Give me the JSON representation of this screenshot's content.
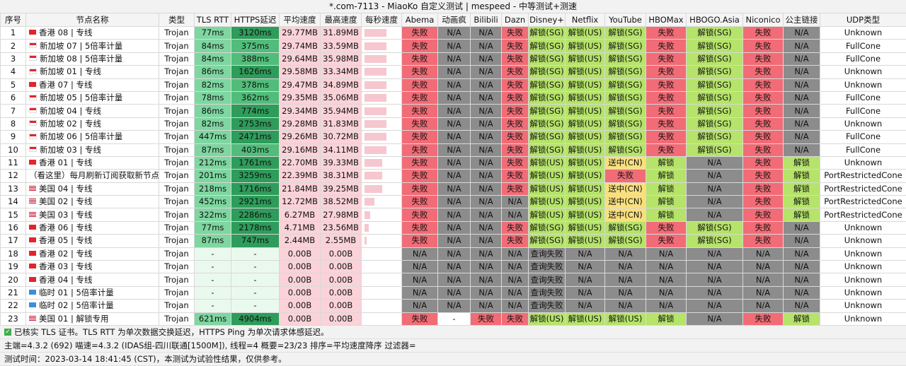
{
  "title": "*.com-7113 - MiaoKo 自定义测试 | mespeed - 中等测试+测速",
  "columns": [
    "序号",
    "节点名称",
    "类型",
    "TLS RTT",
    "HTTPS延迟",
    "平均速度",
    "最高速度",
    "每秒速度",
    "Abema",
    "动画疯",
    "Bilibili",
    "Dazn",
    "Disney+",
    "Netflix",
    "YouTube",
    "HBOMax",
    "HBOGO.Asia",
    "Niconico",
    "公主链接",
    "UDP类型"
  ],
  "rows": [
    {
      "idx": "1",
      "flag": "hk",
      "name": "香港 08 | 专线",
      "type": "Trojan",
      "rtt": "77ms",
      "https": "3120ms",
      "avg": "29.77MB",
      "max": "31.89MB",
      "speed_level": 0.55,
      "abema": "失败",
      "ani": "N/A",
      "bili": "N/A",
      "dazn": "失败",
      "disney": "解锁(SG)",
      "netflix": "解锁(US)",
      "youtube": "解锁(SG)",
      "hbomax": "失败",
      "hbogo": "解锁(SG)",
      "nico": "失败",
      "pcr": "N/A",
      "udp": "Unknown"
    },
    {
      "idx": "2",
      "flag": "sg",
      "name": "新加坡 07 | 5倍率计量",
      "type": "Trojan",
      "rtt": "84ms",
      "https": "375ms",
      "avg": "29.74MB",
      "max": "33.59MB",
      "speed_level": 0.55,
      "abema": "失败",
      "ani": "N/A",
      "bili": "N/A",
      "dazn": "失败",
      "disney": "解锁(SG)",
      "netflix": "解锁(US)",
      "youtube": "解锁(SG)",
      "hbomax": "失败",
      "hbogo": "解锁(SG)",
      "nico": "失败",
      "pcr": "N/A",
      "udp": "FullCone"
    },
    {
      "idx": "3",
      "flag": "sg",
      "name": "新加坡 08 | 5倍率计量",
      "type": "Trojan",
      "rtt": "84ms",
      "https": "388ms",
      "avg": "29.64MB",
      "max": "35.98MB",
      "speed_level": 0.55,
      "abema": "失败",
      "ani": "N/A",
      "bili": "N/A",
      "dazn": "失败",
      "disney": "解锁(SG)",
      "netflix": "解锁(US)",
      "youtube": "解锁(SG)",
      "hbomax": "失败",
      "hbogo": "解锁(SG)",
      "nico": "失败",
      "pcr": "N/A",
      "udp": "FullCone"
    },
    {
      "idx": "4",
      "flag": "sg",
      "name": "新加坡 01 | 专线",
      "type": "Trojan",
      "rtt": "86ms",
      "https": "1626ms",
      "avg": "29.58MB",
      "max": "33.34MB",
      "speed_level": 0.55,
      "abema": "失败",
      "ani": "N/A",
      "bili": "N/A",
      "dazn": "失败",
      "disney": "解锁(SG)",
      "netflix": "解锁(US)",
      "youtube": "解锁(SG)",
      "hbomax": "失败",
      "hbogo": "解锁(SG)",
      "nico": "失败",
      "pcr": "N/A",
      "udp": "Unknown"
    },
    {
      "idx": "5",
      "flag": "hk",
      "name": "香港 07 | 专线",
      "type": "Trojan",
      "rtt": "82ms",
      "https": "378ms",
      "avg": "29.47MB",
      "max": "34.89MB",
      "speed_level": 0.55,
      "abema": "失败",
      "ani": "N/A",
      "bili": "N/A",
      "dazn": "失败",
      "disney": "解锁(SG)",
      "netflix": "解锁(US)",
      "youtube": "解锁(SG)",
      "hbomax": "失败",
      "hbogo": "解锁(SG)",
      "nico": "失败",
      "pcr": "N/A",
      "udp": "Unknown"
    },
    {
      "idx": "6",
      "flag": "sg",
      "name": "新加坡 05 | 5倍率计量",
      "type": "Trojan",
      "rtt": "78ms",
      "https": "362ms",
      "avg": "29.35MB",
      "max": "35.06MB",
      "speed_level": 0.55,
      "abema": "失败",
      "ani": "N/A",
      "bili": "N/A",
      "dazn": "失败",
      "disney": "解锁(SG)",
      "netflix": "解锁(US)",
      "youtube": "解锁(SG)",
      "hbomax": "失败",
      "hbogo": "解锁(SG)",
      "nico": "失败",
      "pcr": "N/A",
      "udp": "FullCone"
    },
    {
      "idx": "7",
      "flag": "sg",
      "name": "新加坡 04 | 专线",
      "type": "Trojan",
      "rtt": "86ms",
      "https": "774ms",
      "avg": "29.34MB",
      "max": "35.94MB",
      "speed_level": 0.55,
      "abema": "失败",
      "ani": "N/A",
      "bili": "N/A",
      "dazn": "失败",
      "disney": "解锁(SG)",
      "netflix": "解锁(US)",
      "youtube": "解锁(SG)",
      "hbomax": "失败",
      "hbogo": "解锁(SG)",
      "nico": "失败",
      "pcr": "N/A",
      "udp": "FullCone"
    },
    {
      "idx": "8",
      "flag": "sg",
      "name": "新加坡 02 | 专线",
      "type": "Trojan",
      "rtt": "82ms",
      "https": "2753ms",
      "avg": "29.28MB",
      "max": "31.83MB",
      "speed_level": 0.55,
      "abema": "失败",
      "ani": "N/A",
      "bili": "N/A",
      "dazn": "失败",
      "disney": "解锁(SG)",
      "netflix": "解锁(US)",
      "youtube": "解锁(SG)",
      "hbomax": "失败",
      "hbogo": "解锁(SG)",
      "nico": "失败",
      "pcr": "N/A",
      "udp": "Unknown"
    },
    {
      "idx": "9",
      "flag": "sg",
      "name": "新加坡 06 | 5倍率计量",
      "type": "Trojan",
      "rtt": "447ms",
      "https": "2471ms",
      "avg": "29.26MB",
      "max": "30.72MB",
      "speed_level": 0.55,
      "abema": "失败",
      "ani": "N/A",
      "bili": "N/A",
      "dazn": "失败",
      "disney": "解锁(SG)",
      "netflix": "解锁(US)",
      "youtube": "解锁(SG)",
      "hbomax": "失败",
      "hbogo": "解锁(SG)",
      "nico": "失败",
      "pcr": "N/A",
      "udp": "FullCone"
    },
    {
      "idx": "10",
      "flag": "sg",
      "name": "新加坡 03 | 专线",
      "type": "Trojan",
      "rtt": "87ms",
      "https": "403ms",
      "avg": "29.16MB",
      "max": "34.11MB",
      "speed_level": 0.55,
      "abema": "失败",
      "ani": "N/A",
      "bili": "N/A",
      "dazn": "失败",
      "disney": "解锁(SG)",
      "netflix": "解锁(US)",
      "youtube": "解锁(SG)",
      "hbomax": "失败",
      "hbogo": "解锁(SG)",
      "nico": "失败",
      "pcr": "N/A",
      "udp": "FullCone"
    },
    {
      "idx": "11",
      "flag": "hk",
      "name": "香港 01 | 专线",
      "type": "Trojan",
      "rtt": "212ms",
      "https": "1761ms",
      "avg": "22.70MB",
      "max": "39.33MB",
      "speed_level": 0.45,
      "abema": "失败",
      "ani": "N/A",
      "bili": "N/A",
      "dazn": "失败",
      "disney": "解锁(US)",
      "netflix": "解锁(US)",
      "youtube": "送中(CN)",
      "hbomax": "解锁",
      "hbogo": "N/A",
      "nico": "失败",
      "pcr": "解锁",
      "udp": "Unknown"
    },
    {
      "idx": "12",
      "flag": "",
      "name": "（看这里）每月刷新订阅获取新节点",
      "type": "Trojan",
      "rtt": "201ms",
      "https": "3259ms",
      "avg": "22.39MB",
      "max": "38.31MB",
      "speed_level": 0.45,
      "abema": "失败",
      "ani": "N/A",
      "bili": "N/A",
      "dazn": "失败",
      "disney": "解锁(US)",
      "netflix": "解锁(US)",
      "youtube": "失败",
      "hbomax": "解锁",
      "hbogo": "N/A",
      "nico": "失败",
      "pcr": "解锁",
      "udp": "PortRestrictedCone"
    },
    {
      "idx": "13",
      "flag": "us",
      "name": "美国 04 | 专线",
      "type": "Trojan",
      "rtt": "218ms",
      "https": "1716ms",
      "avg": "21.84MB",
      "max": "39.25MB",
      "speed_level": 0.45,
      "abema": "失败",
      "ani": "N/A",
      "bili": "N/A",
      "dazn": "失败",
      "disney": "解锁(US)",
      "netflix": "解锁(US)",
      "youtube": "送中(CN)",
      "hbomax": "解锁",
      "hbogo": "N/A",
      "nico": "失败",
      "pcr": "解锁",
      "udp": "PortRestrictedCone"
    },
    {
      "idx": "14",
      "flag": "us",
      "name": "美国 02 | 专线",
      "type": "Trojan",
      "rtt": "452ms",
      "https": "2921ms",
      "avg": "12.72MB",
      "max": "38.52MB",
      "speed_level": 0.25,
      "abema": "失败",
      "ani": "N/A",
      "bili": "N/A",
      "dazn": "N/A",
      "disney": "解锁(US)",
      "netflix": "解锁(US)",
      "youtube": "送中(CN)",
      "hbomax": "解锁",
      "hbogo": "N/A",
      "nico": "失败",
      "pcr": "解锁",
      "udp": "PortRestrictedCone"
    },
    {
      "idx": "15",
      "flag": "us",
      "name": "美国 03 | 专线",
      "type": "Trojan",
      "rtt": "322ms",
      "https": "2286ms",
      "avg": "6.27MB",
      "max": "27.98MB",
      "speed_level": 0.15,
      "abema": "失败",
      "ani": "N/A",
      "bili": "N/A",
      "dazn": "N/A",
      "disney": "解锁(US)",
      "netflix": "解锁(US)",
      "youtube": "送中(CN)",
      "hbomax": "解锁",
      "hbogo": "N/A",
      "nico": "失败",
      "pcr": "解锁",
      "udp": "PortRestrictedCone"
    },
    {
      "idx": "16",
      "flag": "hk",
      "name": "香港 06 | 专线",
      "type": "Trojan",
      "rtt": "77ms",
      "https": "2178ms",
      "avg": "4.71MB",
      "max": "23.56MB",
      "speed_level": 0.1,
      "abema": "失败",
      "ani": "N/A",
      "bili": "N/A",
      "dazn": "失败",
      "disney": "解锁(SG)",
      "netflix": "解锁(US)",
      "youtube": "解锁(SG)",
      "hbomax": "失败",
      "hbogo": "解锁(SG)",
      "nico": "失败",
      "pcr": "N/A",
      "udp": "Unknown"
    },
    {
      "idx": "17",
      "flag": "hk",
      "name": "香港 05 | 专线",
      "type": "Trojan",
      "rtt": "87ms",
      "https": "747ms",
      "avg": "2.44MB",
      "max": "2.55MB",
      "speed_level": 0.05,
      "abema": "失败",
      "ani": "N/A",
      "bili": "N/A",
      "dazn": "失败",
      "disney": "解锁(SG)",
      "netflix": "解锁(US)",
      "youtube": "解锁(SG)",
      "hbomax": "失败",
      "hbogo": "解锁(SG)",
      "nico": "失败",
      "pcr": "N/A",
      "udp": "Unknown"
    },
    {
      "idx": "18",
      "flag": "hk",
      "name": "香港 02 | 专线",
      "type": "Trojan",
      "rtt": "-",
      "https": "-",
      "avg": "0.00B",
      "max": "0.00B",
      "speed_level": 0,
      "abema": "N/A",
      "ani": "N/A",
      "bili": "N/A",
      "dazn": "N/A",
      "disney": "查询失败",
      "netflix": "N/A",
      "youtube": "N/A",
      "hbomax": "N/A",
      "hbogo": "N/A",
      "nico": "N/A",
      "pcr": "N/A",
      "udp": "Unknown"
    },
    {
      "idx": "19",
      "flag": "hk",
      "name": "香港 03 | 专线",
      "type": "Trojan",
      "rtt": "-",
      "https": "-",
      "avg": "0.00B",
      "max": "0.00B",
      "speed_level": 0,
      "abema": "N/A",
      "ani": "N/A",
      "bili": "N/A",
      "dazn": "N/A",
      "disney": "查询失败",
      "netflix": "N/A",
      "youtube": "N/A",
      "hbomax": "N/A",
      "hbogo": "N/A",
      "nico": "N/A",
      "pcr": "N/A",
      "udp": "Unknown"
    },
    {
      "idx": "20",
      "flag": "hk",
      "name": "香港 04 | 专线",
      "type": "Trojan",
      "rtt": "-",
      "https": "-",
      "avg": "0.00B",
      "max": "0.00B",
      "speed_level": 0,
      "abema": "N/A",
      "ani": "N/A",
      "bili": "N/A",
      "dazn": "N/A",
      "disney": "查询失败",
      "netflix": "N/A",
      "youtube": "N/A",
      "hbomax": "N/A",
      "hbogo": "N/A",
      "nico": "N/A",
      "pcr": "N/A",
      "udp": "Unknown"
    },
    {
      "idx": "21",
      "flag": "cn",
      "name": "临时 01 | 5倍率计量",
      "type": "Trojan",
      "rtt": "-",
      "https": "-",
      "avg": "0.00B",
      "max": "0.00B",
      "speed_level": 0,
      "abema": "N/A",
      "ani": "N/A",
      "bili": "N/A",
      "dazn": "N/A",
      "disney": "查询失败",
      "netflix": "N/A",
      "youtube": "N/A",
      "hbomax": "N/A",
      "hbogo": "N/A",
      "nico": "N/A",
      "pcr": "N/A",
      "udp": "Unknown"
    },
    {
      "idx": "22",
      "flag": "cn",
      "name": "临时 02 | 5倍率计量",
      "type": "Trojan",
      "rtt": "-",
      "https": "-",
      "avg": "0.00B",
      "max": "0.00B",
      "speed_level": 0,
      "abema": "N/A",
      "ani": "N/A",
      "bili": "N/A",
      "dazn": "N/A",
      "disney": "查询失败",
      "netflix": "N/A",
      "youtube": "N/A",
      "hbomax": "N/A",
      "hbogo": "N/A",
      "nico": "N/A",
      "pcr": "N/A",
      "udp": "Unknown"
    },
    {
      "idx": "23",
      "flag": "us",
      "name": "美国 01 | 解锁专用",
      "type": "Trojan",
      "rtt": "621ms",
      "https": "4904ms",
      "avg": "0.00B",
      "max": "0.00B",
      "speed_level": 0,
      "abema": "失败",
      "ani": "-",
      "bili": "失败",
      "dazn": "失败",
      "disney": "解锁(US)",
      "netflix": "解锁(US)",
      "youtube": "解锁(US)",
      "hbomax": "解锁",
      "hbogo": "N/A",
      "nico": "失败",
      "pcr": "解锁",
      "udp": "Unknown"
    }
  ],
  "footer": {
    "line1": "已核实 TLS 证书。TLS RTT 为单次数据交换延迟，HTTPS Ping 为单次请求体感延迟。",
    "line2": "主端=4.3.2 (692) 喵速=4.3.2 (IDAS组-四川联通[1500M]), 线程=4 概要=23/23 排序=平均速度降序 过滤器=",
    "line3": "测试时间：2023-03-14 18:41:45 (CST)，本测试为试验性结果，仅供参考。"
  },
  "colors": {
    "fail": "#f16c76",
    "na": "#8c8c8c",
    "unlock": "#b6e36a",
    "cn": "#f9e07e",
    "rtt_light": "#7ed6a0",
    "https_dark": "#2e9c5a",
    "https_mid": "#52bd7b",
    "speed_bg": "#fad2d8",
    "empty": "#eaf9ee",
    "white": "#ffffff"
  }
}
